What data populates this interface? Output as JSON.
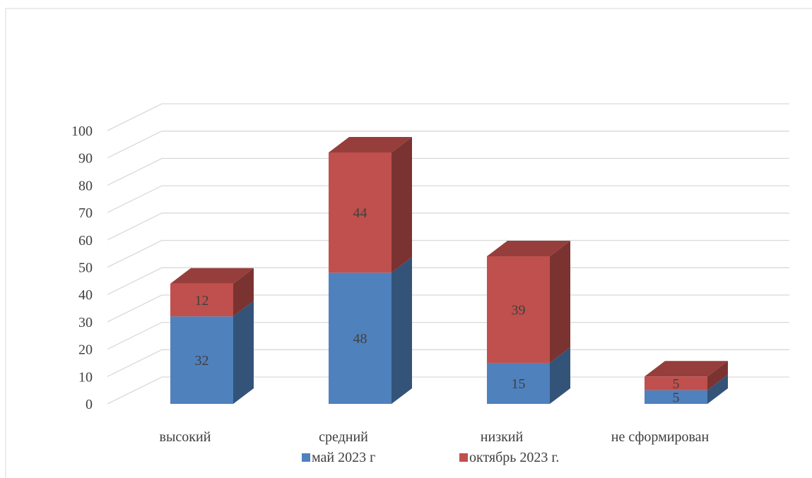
{
  "chart_data": {
    "type": "bar",
    "stacked": true,
    "three_d": true,
    "categories": [
      "высокий",
      "средний",
      "низкий",
      "не сформирован"
    ],
    "series": [
      {
        "name": "май 2023 г",
        "values": [
          32,
          48,
          15,
          5
        ],
        "color": "#4F81BD"
      },
      {
        "name": "октябрь 2023 г.",
        "values": [
          12,
          44,
          39,
          5
        ],
        "color": "#C0504D"
      }
    ],
    "ylim": [
      0,
      100
    ],
    "yticks": [
      0,
      10,
      20,
      30,
      40,
      50,
      60,
      70,
      80,
      90,
      100
    ],
    "grid": true,
    "legend_position": "bottom",
    "data_labels": true
  }
}
